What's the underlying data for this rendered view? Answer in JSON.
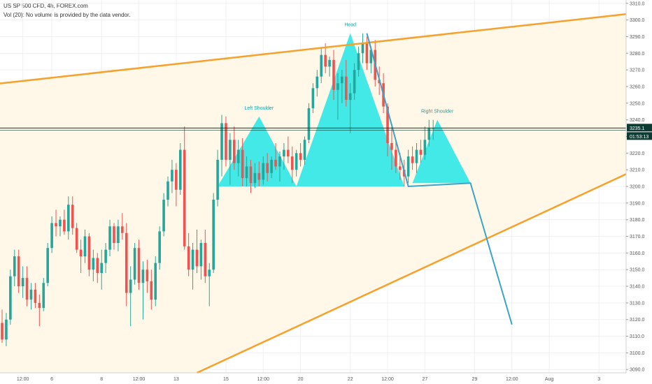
{
  "header": {
    "title": "US SP 500 CFD, 4h, FOREX.com",
    "volume_note": "Vol (20): No volume is provided by the data vendor."
  },
  "colors": {
    "up": "#26a69a",
    "down": "#ef5350",
    "channel": "#f7a02a",
    "pattern_fill": "#22e6e6",
    "projection": "#3ba3c8",
    "price_line": "#0d3b33",
    "badge": "#0d3b33",
    "grid": "#f0f0f0",
    "channel_fill": "#fff8e8"
  },
  "chart_data": {
    "type": "candlestick",
    "y_axis": {
      "min": 3088,
      "max": 3312,
      "ticks": [
        3090,
        3100,
        3110,
        3120,
        3130,
        3140,
        3150,
        3160,
        3170,
        3180,
        3190,
        3200,
        3210,
        3220,
        3230,
        3240,
        3250,
        3260,
        3270,
        3280,
        3290,
        3300,
        3310
      ],
      "tick_labels": [
        "3090.0",
        "3100.0",
        "3110.0",
        "3120.0",
        "3130.0",
        "3140.0",
        "3150.0",
        "3160.0",
        "3170.0",
        "3180.0",
        "3190.0",
        "3200.0",
        "3210.0",
        "3220.0",
        "3230.0",
        "3240.0",
        "3250.0",
        "3260.0",
        "3270.0",
        "3280.0",
        "3290.0",
        "3300.0",
        "3310.0"
      ]
    },
    "x_axis": {
      "min": 0,
      "max": 145,
      "ticks": [
        {
          "x": 5,
          "label": "12:00"
        },
        {
          "x": 12,
          "label": "6"
        },
        {
          "x": 24,
          "label": "8"
        },
        {
          "x": 33,
          "label": "12:00"
        },
        {
          "x": 42,
          "label": "13"
        },
        {
          "x": 54,
          "label": "15"
        },
        {
          "x": 63,
          "label": "12:00"
        },
        {
          "x": 72,
          "label": "20"
        },
        {
          "x": 84,
          "label": "22"
        },
        {
          "x": 93,
          "label": "12:00"
        },
        {
          "x": 102,
          "label": "27"
        },
        {
          "x": 114,
          "label": "29"
        },
        {
          "x": 123,
          "label": "12:00"
        },
        {
          "x": 132,
          "label": "Aug"
        },
        {
          "x": 144,
          "label": "3"
        }
      ]
    },
    "candles": [
      [
        0,
        3118,
        3126,
        3106,
        3108
      ],
      [
        1,
        3108,
        3124,
        3104,
        3120
      ],
      [
        2,
        3120,
        3150,
        3117,
        3146
      ],
      [
        3,
        3146,
        3162,
        3140,
        3158
      ],
      [
        4,
        3158,
        3162,
        3136,
        3140
      ],
      [
        5,
        3140,
        3152,
        3133,
        3145
      ],
      [
        6,
        3145,
        3152,
        3128,
        3132
      ],
      [
        7,
        3132,
        3142,
        3126,
        3138
      ],
      [
        8,
        3138,
        3142,
        3127,
        3130
      ],
      [
        9,
        3130,
        3135,
        3116,
        3127
      ],
      [
        10,
        3127,
        3145,
        3125,
        3142
      ],
      [
        11,
        3142,
        3166,
        3140,
        3163
      ],
      [
        12,
        3163,
        3182,
        3160,
        3178
      ],
      [
        13,
        3178,
        3186,
        3170,
        3176
      ],
      [
        14,
        3176,
        3182,
        3170,
        3180
      ],
      [
        15,
        3180,
        3186,
        3171,
        3173
      ],
      [
        16,
        3173,
        3194,
        3168,
        3189
      ],
      [
        17,
        3189,
        3194,
        3171,
        3175
      ],
      [
        18,
        3175,
        3178,
        3160,
        3162
      ],
      [
        19,
        3162,
        3168,
        3148,
        3158
      ],
      [
        20,
        3158,
        3174,
        3154,
        3170
      ],
      [
        21,
        3170,
        3172,
        3146,
        3150
      ],
      [
        22,
        3150,
        3162,
        3143,
        3157
      ],
      [
        23,
        3157,
        3160,
        3142,
        3148
      ],
      [
        24,
        3148,
        3162,
        3138,
        3154
      ],
      [
        25,
        3154,
        3166,
        3148,
        3162
      ],
      [
        26,
        3162,
        3180,
        3158,
        3176
      ],
      [
        27,
        3176,
        3178,
        3162,
        3166
      ],
      [
        28,
        3166,
        3180,
        3161,
        3176
      ],
      [
        29,
        3176,
        3184,
        3168,
        3172
      ],
      [
        30,
        3172,
        3178,
        3128,
        3136
      ],
      [
        31,
        3136,
        3152,
        3116,
        3144
      ],
      [
        32,
        3144,
        3166,
        3141,
        3163
      ],
      [
        33,
        3163,
        3168,
        3138,
        3142
      ],
      [
        34,
        3142,
        3155,
        3120,
        3150
      ],
      [
        35,
        3150,
        3156,
        3136,
        3143
      ],
      [
        36,
        3143,
        3150,
        3126,
        3132
      ],
      [
        37,
        3132,
        3158,
        3128,
        3154
      ],
      [
        38,
        3154,
        3176,
        3150,
        3173
      ],
      [
        39,
        3173,
        3196,
        3170,
        3192
      ],
      [
        40,
        3192,
        3206,
        3188,
        3203
      ],
      [
        41,
        3203,
        3216,
        3196,
        3210
      ],
      [
        42,
        3210,
        3214,
        3188,
        3198
      ],
      [
        43,
        3198,
        3226,
        3195,
        3222
      ],
      [
        44,
        3222,
        3236,
        3162,
        3164
      ],
      [
        45,
        3164,
        3172,
        3146,
        3150
      ],
      [
        46,
        3150,
        3166,
        3138,
        3162
      ],
      [
        47,
        3162,
        3174,
        3148,
        3152
      ],
      [
        48,
        3152,
        3168,
        3144,
        3166
      ],
      [
        49,
        3166,
        3174,
        3142,
        3146
      ],
      [
        50,
        3146,
        3154,
        3128,
        3150
      ],
      [
        51,
        3150,
        3196,
        3148,
        3192
      ],
      [
        52,
        3192,
        3222,
        3188,
        3216
      ],
      [
        53,
        3216,
        3243,
        3206,
        3238
      ],
      [
        54,
        3238,
        3242,
        3212,
        3216
      ],
      [
        55,
        3216,
        3232,
        3201,
        3228
      ],
      [
        56,
        3228,
        3236,
        3210,
        3214
      ],
      [
        57,
        3214,
        3228,
        3206,
        3222
      ],
      [
        58,
        3222,
        3229,
        3200,
        3205
      ],
      [
        59,
        3205,
        3218,
        3200,
        3212
      ],
      [
        60,
        3212,
        3216,
        3196,
        3202
      ],
      [
        61,
        3202,
        3214,
        3199,
        3208
      ],
      [
        62,
        3208,
        3215,
        3200,
        3204
      ],
      [
        63,
        3204,
        3218,
        3201,
        3214
      ],
      [
        64,
        3214,
        3220,
        3203,
        3208
      ],
      [
        65,
        3208,
        3218,
        3205,
        3216
      ],
      [
        66,
        3216,
        3226,
        3210,
        3212
      ],
      [
        67,
        3212,
        3221,
        3203,
        3218
      ],
      [
        68,
        3218,
        3226,
        3210,
        3222
      ],
      [
        69,
        3222,
        3230,
        3214,
        3218
      ],
      [
        70,
        3218,
        3224,
        3202,
        3210
      ],
      [
        71,
        3210,
        3222,
        3206,
        3220
      ],
      [
        72,
        3220,
        3226,
        3212,
        3216
      ],
      [
        73,
        3216,
        3230,
        3213,
        3228
      ],
      [
        74,
        3228,
        3250,
        3226,
        3247
      ],
      [
        75,
        3247,
        3262,
        3244,
        3259
      ],
      [
        76,
        3259,
        3270,
        3254,
        3266
      ],
      [
        77,
        3266,
        3283,
        3262,
        3279
      ],
      [
        78,
        3279,
        3286,
        3268,
        3272
      ],
      [
        79,
        3272,
        3278,
        3266,
        3276
      ],
      [
        80,
        3276,
        3282,
        3252,
        3258
      ],
      [
        81,
        3258,
        3268,
        3240,
        3262
      ],
      [
        82,
        3262,
        3270,
        3250,
        3266
      ],
      [
        83,
        3266,
        3276,
        3248,
        3252
      ],
      [
        84,
        3252,
        3262,
        3232,
        3256
      ],
      [
        85,
        3256,
        3274,
        3252,
        3270
      ],
      [
        86,
        3270,
        3284,
        3266,
        3280
      ],
      [
        87,
        3280,
        3292,
        3274,
        3286
      ],
      [
        88,
        3286,
        3290,
        3270,
        3274
      ],
      [
        89,
        3274,
        3284,
        3268,
        3282
      ],
      [
        90,
        3282,
        3288,
        3260,
        3264
      ],
      [
        91,
        3264,
        3272,
        3255,
        3262
      ],
      [
        92,
        3262,
        3268,
        3244,
        3248
      ],
      [
        93,
        3248,
        3250,
        3218,
        3226
      ],
      [
        94,
        3226,
        3236,
        3210,
        3222
      ],
      [
        95,
        3222,
        3228,
        3208,
        3212
      ],
      [
        96,
        3212,
        3220,
        3204,
        3210
      ],
      [
        97,
        3210,
        3216,
        3200,
        3206
      ],
      [
        98,
        3206,
        3222,
        3202,
        3218
      ],
      [
        99,
        3218,
        3224,
        3210,
        3214
      ],
      [
        100,
        3214,
        3226,
        3208,
        3222
      ],
      [
        101,
        3222,
        3228,
        3214,
        3219
      ],
      [
        102,
        3219,
        3236,
        3216,
        3228
      ],
      [
        103,
        3228,
        3240,
        3224,
        3235
      ],
      [
        104,
        3235,
        3240,
        3228,
        3235
      ]
    ],
    "current_price": 3235.1,
    "countdown": "01:53:13",
    "channel": {
      "upper": [
        [
          0,
          3262
        ],
        [
          145,
          3302
        ]
      ],
      "lower": [
        [
          47,
          3088
        ],
        [
          145,
          3201
        ]
      ]
    },
    "pattern": {
      "left_shoulder": {
        "label": "Left Shoulder",
        "triangle": [
          [
            52,
            3200
          ],
          [
            62,
            3242
          ],
          [
            71,
            3200
          ]
        ]
      },
      "head": {
        "label": "Head",
        "triangle": [
          [
            71,
            3200
          ],
          [
            84,
            3292
          ],
          [
            97,
            3200
          ]
        ]
      },
      "right_shoulder": {
        "label": "Right Shoulder",
        "triangle": [
          [
            99,
            3202
          ],
          [
            105,
            3240
          ],
          [
            113,
            3202
          ]
        ]
      },
      "neckline": [
        [
          52,
          3200
        ],
        [
          113,
          3202
        ]
      ]
    },
    "projection": [
      [
        88,
        3292
      ],
      [
        98,
        3200
      ],
      [
        113,
        3202
      ],
      [
        123,
        3117
      ]
    ]
  }
}
